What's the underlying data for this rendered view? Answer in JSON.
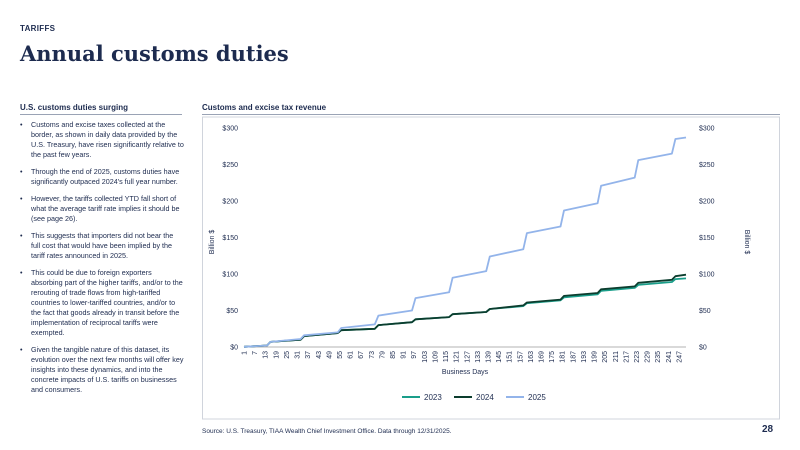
{
  "header": {
    "eyebrow": "TARIFFS",
    "title": "Annual customs duties"
  },
  "sidebar": {
    "heading": "U.S. customs duties surging",
    "bullets": [
      "Customs and excise taxes collected at the border, as shown in daily data provided by the U.S. Treasury, have risen significantly relative to the past few years.",
      "Through the end of 2025, customs duties have significantly outpaced 2024's full year number.",
      "However, the tariffs collected YTD fall short of what the average tariff rate implies it should be (see page 26).",
      "This suggests that importers did not bear the full cost that would have been implied by the tariff rates announced in 2025.",
      "This could be due to foreign exporters absorbing part of the higher tariffs, and/or to the rerouting of trade flows from high-tariffed countries to lower-tariffed countries, and/or to the fact that goods already in transit before the implementation of reciprocal tariffs were exempted.",
      "Given the tangible nature of this dataset, its evolution over the next few months will offer key insights into these dynamics, and into the concrete impacts of U.S. tariffs on businesses and consumers."
    ]
  },
  "footer": {
    "source": "Source: U.S. Treasury, TIAA Wealth Chief Investment Office. Data through 12/31/2025.",
    "page": "28"
  },
  "chart_data": {
    "type": "line",
    "title": "Customs and excise tax revenue",
    "xlabel": "Business Days",
    "ylabel": "Billion $",
    "ylabel_right": "Billion $",
    "ylim": [
      0,
      300
    ],
    "yticks": [
      0,
      50,
      100,
      150,
      200,
      250,
      300
    ],
    "ytick_labels": [
      "$0",
      "$50",
      "$100",
      "$150",
      "$200",
      "$250",
      "$300"
    ],
    "xlim": [
      1,
      251
    ],
    "xtick_labels": [
      "1",
      "7",
      "13",
      "19",
      "25",
      "31",
      "37",
      "43",
      "49",
      "55",
      "61",
      "67",
      "73",
      "79",
      "85",
      "91",
      "97",
      "103",
      "109",
      "115",
      "121",
      "127",
      "133",
      "139",
      "145",
      "151",
      "157",
      "163",
      "169",
      "175",
      "181",
      "187",
      "193",
      "199",
      "205",
      "211",
      "217",
      "223",
      "229",
      "235",
      "241",
      "247"
    ],
    "legend_position": "bottom",
    "grid": false,
    "series": [
      {
        "name": "2023",
        "color": "#1a9e8a",
        "x": [
          1,
          14,
          16,
          33,
          35,
          54,
          56,
          75,
          77,
          96,
          98,
          117,
          119,
          138,
          140,
          159,
          161,
          180,
          182,
          201,
          203,
          222,
          224,
          243,
          245,
          251
        ],
        "y": [
          0.3,
          2,
          7,
          10,
          15,
          19,
          23,
          25,
          30,
          34,
          38,
          41,
          45,
          48,
          52,
          56,
          60,
          64,
          68,
          72,
          77,
          81,
          85,
          89,
          93,
          94
        ]
      },
      {
        "name": "2024",
        "color": "#0c3d2e",
        "x": [
          1,
          14,
          16,
          33,
          35,
          54,
          56,
          75,
          77,
          96,
          98,
          117,
          119,
          138,
          140,
          159,
          161,
          180,
          182,
          201,
          203,
          222,
          224,
          243,
          245,
          251
        ],
        "y": [
          0.3,
          2,
          7,
          10,
          15,
          19,
          23,
          25,
          30,
          34,
          38,
          41,
          45,
          48,
          52,
          57,
          61,
          65,
          70,
          74,
          79,
          83,
          88,
          92,
          97,
          99
        ]
      },
      {
        "name": "2025",
        "color": "#93b4ea",
        "x": [
          1,
          14,
          16,
          33,
          35,
          54,
          56,
          75,
          77,
          96,
          98,
          117,
          119,
          138,
          140,
          159,
          161,
          180,
          182,
          201,
          203,
          222,
          224,
          243,
          245,
          251
        ],
        "y": [
          0.3,
          2,
          7,
          11,
          16,
          20,
          26,
          31,
          43,
          50,
          67,
          75,
          95,
          104,
          124,
          134,
          156,
          165,
          187,
          197,
          221,
          232,
          256,
          265,
          285,
          287
        ]
      }
    ]
  }
}
